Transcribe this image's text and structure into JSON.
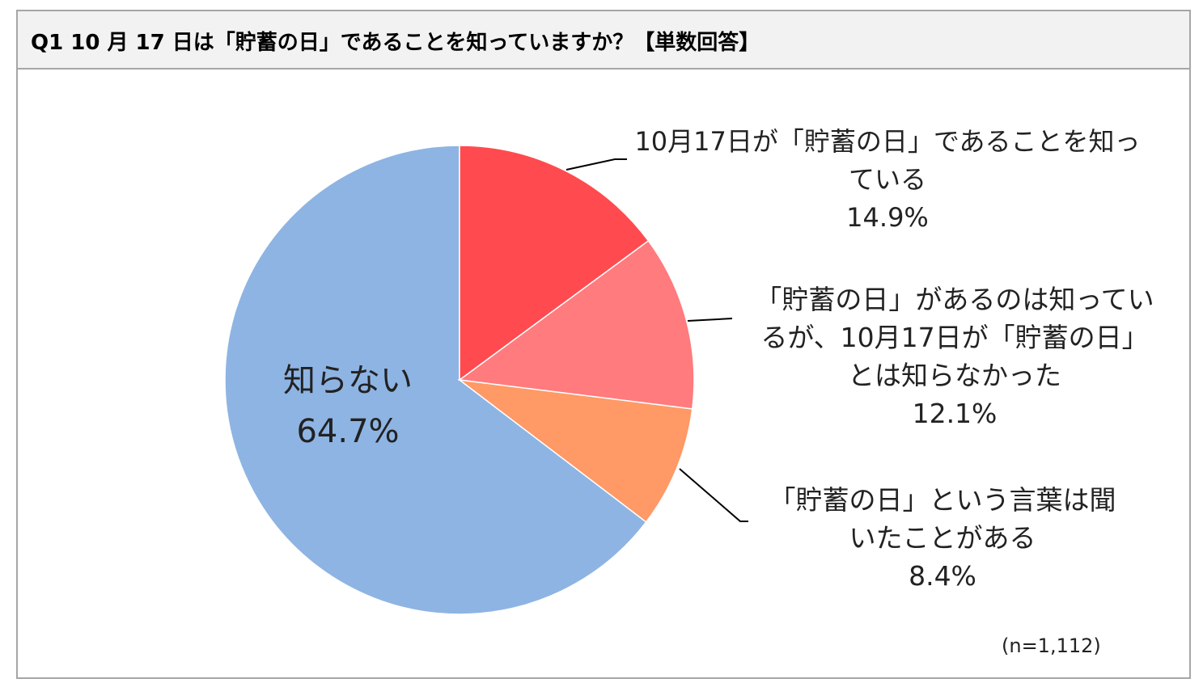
{
  "chart_data": {
    "type": "pie",
    "title": "Q1 10 月 17 日は「貯蓄の日」であることを知っていますか？【単数回答】",
    "categories": [
      "10月17日が「貯蓄の日」であることを知っている",
      "「貯蓄の日」があるのは知っているが、10月17日が「貯蓄の日」とは知らなかった",
      "「貯蓄の日」という言葉は聞いたことがある",
      "知らない"
    ],
    "values": [
      14.9,
      12.1,
      8.4,
      64.7
    ],
    "value_labels": [
      "14.9%",
      "12.1%",
      "8.4%",
      "64.7%"
    ],
    "colors": [
      "#ff4b4f",
      "#ff7b7e",
      "#ff9966",
      "#8eb4e3"
    ],
    "note": "(n=1,112)"
  }
}
